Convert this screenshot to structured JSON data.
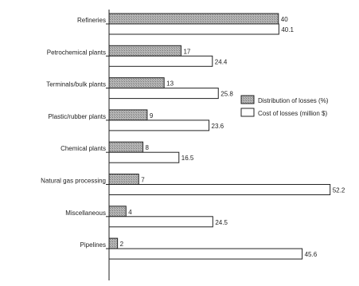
{
  "chart_data": {
    "type": "bar",
    "orientation": "horizontal",
    "categories": [
      "Refineries",
      "Petrochemical plants",
      "Terminals/bulk plants",
      "Plastic/rubber plants",
      "Chemical plants",
      "Natural gas processing",
      "Miscellaneous",
      "Pipelines"
    ],
    "series": [
      {
        "name": "Distribution of losses (%)",
        "values": [
          40,
          17,
          13,
          9,
          8,
          7,
          4,
          2
        ],
        "fill": "hatched-grey"
      },
      {
        "name": "Cost of losses (million $)",
        "values": [
          40.1,
          24.4,
          25.8,
          23.6,
          16.5,
          52.2,
          24.5,
          45.6
        ],
        "fill": "white"
      }
    ],
    "value_labels": [
      [
        "40",
        "17",
        "13",
        "9",
        "8",
        "7",
        "4",
        "2"
      ],
      [
        "40.1",
        "24.4",
        "25.8",
        "23.6",
        "16.5",
        "52.2",
        "24.5",
        "45.6"
      ]
    ],
    "xlim": [
      0,
      55
    ],
    "grid": false,
    "legend_position": "right",
    "colors": {
      "bar_outline": "#222222",
      "hatch_fill": "#b5b5b5",
      "hatch_line": "#7a7a7a",
      "plain_fill": "#ffffff",
      "axis": "#222222"
    }
  }
}
